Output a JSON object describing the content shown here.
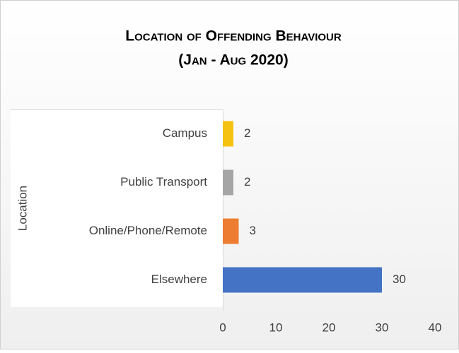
{
  "chart_data": {
    "type": "bar",
    "orientation": "horizontal",
    "title": [
      "Location of Offending Behaviour",
      "(Jan - Aug 2020)"
    ],
    "y_label": "Location",
    "categories": [
      "Campus",
      "Public Transport",
      "Online/Phone/Remote",
      "Elsewhere"
    ],
    "values": [
      2,
      2,
      3,
      30
    ],
    "colors": [
      "#f5c211",
      "#a5a5a5",
      "#ed7d31",
      "#4472c4"
    ],
    "xlim": [
      0,
      40
    ],
    "xticks": [
      0,
      10,
      20,
      30,
      40
    ],
    "grid": false
  }
}
